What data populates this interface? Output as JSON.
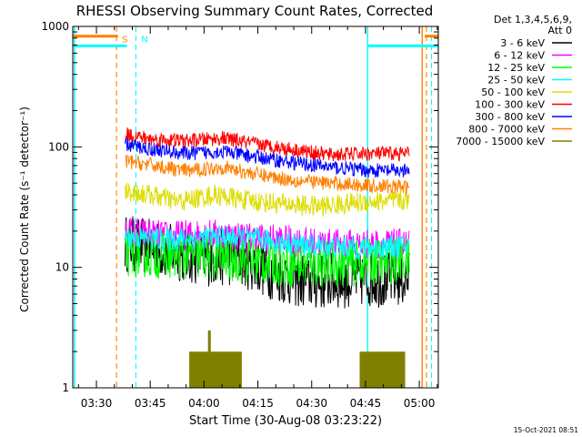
{
  "chart_data": {
    "type": "line",
    "title": "RHESSI Observing Summary Count Rates, Corrected",
    "xlabel": "Start Time (30-Aug-08 03:23:22)",
    "ylabel": "Corrected Count Rate (s⁻¹ detector⁻¹)",
    "yscale": "log",
    "ylim": [
      1,
      1000
    ],
    "xlim_minutes": [
      203.4,
      305.3
    ],
    "x_ticks": [
      {
        "label": "03:30",
        "minutes": 210
      },
      {
        "label": "03:45",
        "minutes": 225
      },
      {
        "label": "04:00",
        "minutes": 240
      },
      {
        "label": "04:15",
        "minutes": 255
      },
      {
        "label": "04:30",
        "minutes": 270
      },
      {
        "label": "04:45",
        "minutes": 285
      },
      {
        "label": "05:00",
        "minutes": 300
      }
    ],
    "y_ticks": [
      {
        "label": "1",
        "value": 1
      },
      {
        "label": "10",
        "value": 10
      },
      {
        "label": "100",
        "value": 100
      },
      {
        "label": "1000",
        "value": 1000
      }
    ],
    "legend_header": [
      "Det 1,3,4,5,6,9,",
      "Att 0"
    ],
    "data_window_minutes": [
      218.0,
      297.2
    ],
    "series": [
      {
        "name": "3 - 6 keV",
        "color": "#000000",
        "noise": 0.55,
        "pts": [
          [
            218,
            16
          ],
          [
            228,
            14
          ],
          [
            240,
            12
          ],
          [
            250,
            12
          ],
          [
            256,
            10
          ],
          [
            262,
            8.5
          ],
          [
            270,
            7.5
          ],
          [
            285,
            8
          ],
          [
            297.2,
            8
          ]
        ]
      },
      {
        "name": "6 - 12 keV",
        "color": "#ff00ff",
        "noise": 0.3,
        "pts": [
          [
            218,
            20
          ],
          [
            230,
            18
          ],
          [
            240,
            19
          ],
          [
            250,
            18
          ],
          [
            260,
            17
          ],
          [
            275,
            15.5
          ],
          [
            290,
            15.5
          ],
          [
            297.2,
            15.5
          ]
        ]
      },
      {
        "name": "12 - 25 keV",
        "color": "#00ff00",
        "noise": 0.45,
        "pts": [
          [
            218,
            13
          ],
          [
            230,
            12.5
          ],
          [
            245,
            12
          ],
          [
            258,
            11
          ],
          [
            270,
            10.5
          ],
          [
            285,
            11
          ],
          [
            297.2,
            11.5
          ]
        ]
      },
      {
        "name": "25 - 50 keV",
        "color": "#00ffff",
        "noise": 0.22,
        "pts": [
          [
            218,
            18
          ],
          [
            230,
            17
          ],
          [
            245,
            18
          ],
          [
            255,
            17
          ],
          [
            270,
            15
          ],
          [
            285,
            14.5
          ],
          [
            297.2,
            15
          ]
        ]
      },
      {
        "name": "50 - 100 keV",
        "color": "#dddd00",
        "noise": 0.2,
        "pts": [
          [
            218,
            43
          ],
          [
            225,
            40
          ],
          [
            233,
            35
          ],
          [
            243,
            40
          ],
          [
            252,
            36
          ],
          [
            260,
            34
          ],
          [
            272,
            32
          ],
          [
            285,
            35
          ],
          [
            297.2,
            36
          ]
        ]
      },
      {
        "name": "100 - 300 keV",
        "color": "#ff0000",
        "noise": 0.14,
        "pts": [
          [
            218,
            128
          ],
          [
            225,
            116
          ],
          [
            235,
            112
          ],
          [
            245,
            118
          ],
          [
            255,
            105
          ],
          [
            265,
            95
          ],
          [
            275,
            86
          ],
          [
            285,
            88
          ],
          [
            297.2,
            88
          ]
        ]
      },
      {
        "name": "300 - 800 keV",
        "color": "#0000ff",
        "noise": 0.14,
        "pts": [
          [
            218,
            105
          ],
          [
            225,
            96
          ],
          [
            235,
            88
          ],
          [
            245,
            92
          ],
          [
            255,
            82
          ],
          [
            265,
            74
          ],
          [
            275,
            68
          ],
          [
            285,
            64
          ],
          [
            297.2,
            63
          ]
        ]
      },
      {
        "name": "800 - 7000 keV",
        "color": "#ff8000",
        "noise": 0.14,
        "pts": [
          [
            218,
            76
          ],
          [
            225,
            71
          ],
          [
            235,
            63
          ],
          [
            245,
            68
          ],
          [
            255,
            59
          ],
          [
            265,
            53
          ],
          [
            275,
            50
          ],
          [
            285,
            48
          ],
          [
            297.2,
            46
          ]
        ]
      },
      {
        "name": "7000 - 15000 keV",
        "color": "#808000",
        "noise": 0.0,
        "pts": [
          [
            218,
            1
          ],
          [
            297.2,
            1
          ]
        ]
      }
    ],
    "burst_intervals_minutes": [
      [
        236.0,
        250.5
      ],
      [
        283.5,
        296.0
      ]
    ],
    "burst_peak_minute": 241.5,
    "burst_level": 2.0,
    "burst_peak_level": 3.0,
    "flag_lines": [
      {
        "label": "",
        "minutes": 203.9,
        "color": "#00ffff",
        "style": "solid"
      },
      {
        "label": "S",
        "minutes": 215.6,
        "color": "#ff8000",
        "style": "dashed"
      },
      {
        "label": "N",
        "minutes": 221.0,
        "color": "#00ffff",
        "style": "dashed"
      },
      {
        "label": "",
        "minutes": 285.6,
        "color": "#00ffff",
        "style": "solid"
      },
      {
        "label": "",
        "minutes": 300.8,
        "color": "#ff8000",
        "style": "solid"
      },
      {
        "label": "",
        "minutes": 302.0,
        "color": "#ff8000",
        "style": "dashed"
      },
      {
        "label": "",
        "minutes": 303.4,
        "color": "#00ffff",
        "style": "dashed"
      }
    ],
    "flag_bars": [
      {
        "color": "#ff8000",
        "start": 203.4,
        "end": 216.0,
        "level": 830
      },
      {
        "color": "#00ffff",
        "start": 203.4,
        "end": 218.5,
        "level": 690
      },
      {
        "color": "#00ffff",
        "start": 285.6,
        "end": 305.3,
        "level": 690
      },
      {
        "color": "#ff8000",
        "start": 301.5,
        "end": 305.3,
        "level": 830
      }
    ]
  },
  "footer_timestamp": "15-Oct-2021 08:51"
}
